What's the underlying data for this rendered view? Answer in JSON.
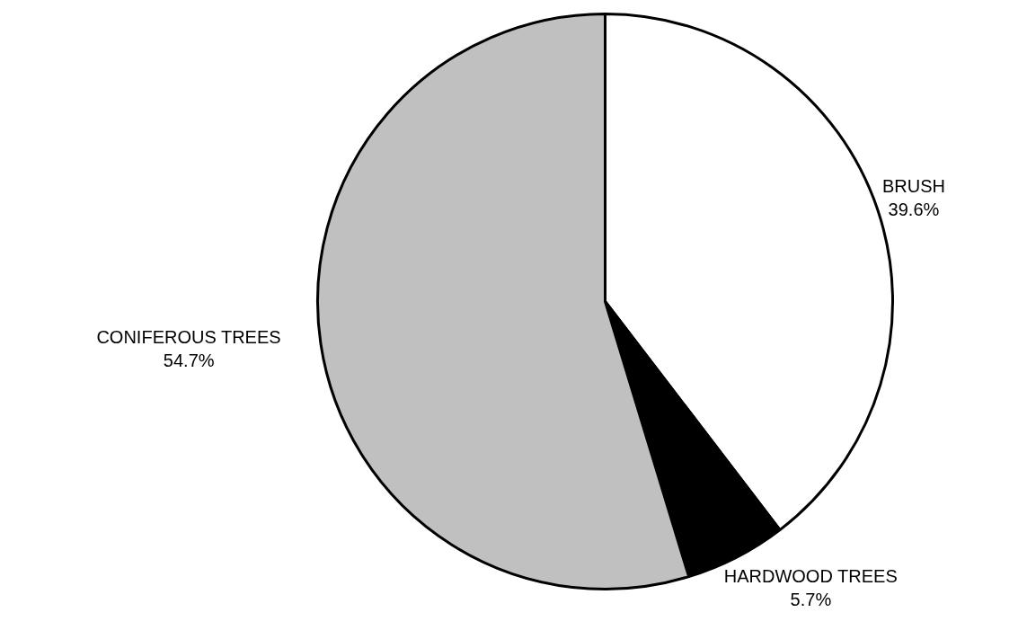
{
  "chart_data": {
    "type": "pie",
    "categories": [
      "BRUSH",
      "HARDWOOD TREES",
      "CONIFEROUS TREES"
    ],
    "values": [
      39.6,
      5.7,
      54.7
    ],
    "colors": [
      "#ffffff",
      "#000000",
      "#c0c0c0"
    ],
    "value_labels": [
      "39.6%",
      "5.7%",
      "54.7%"
    ]
  }
}
